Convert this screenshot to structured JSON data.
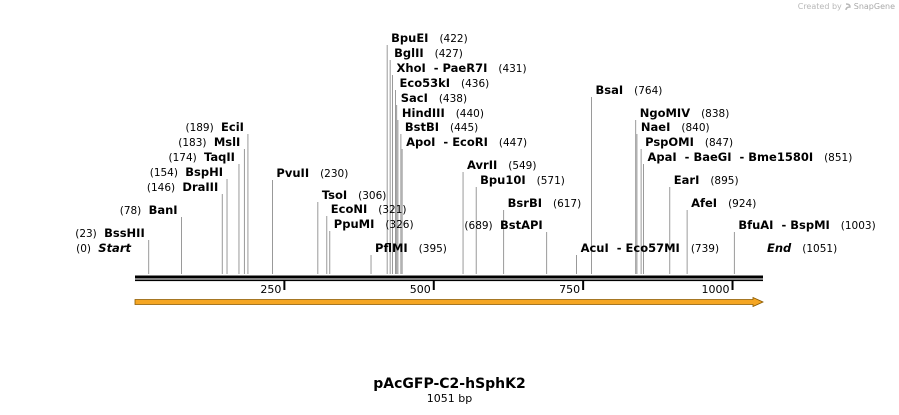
{
  "credit": {
    "prefix": "Created by",
    "brand": "SnapGene",
    "logo_icon": "snapgene-logo-icon"
  },
  "plasmid": {
    "name": "pAcGFP-C2-hSphK2",
    "size_label": "1051 bp",
    "length": 1051
  },
  "colors": {
    "axis": "#000000",
    "feature": "#f5a623",
    "feature_dark": "#8a5a00",
    "site_line": "#808080"
  },
  "ticks": [
    {
      "pos": 250,
      "label": "250"
    },
    {
      "pos": 500,
      "label": "500"
    },
    {
      "pos": 750,
      "label": "750"
    },
    {
      "pos": 1000,
      "label": "1000"
    }
  ],
  "feature": {
    "start": 0,
    "end": 1051,
    "direction": "forward"
  },
  "sites": [
    {
      "name": "Start",
      "pos": 0,
      "pos_label": "(0)",
      "style": "italic"
    },
    {
      "name": "BssHII",
      "pos": 23,
      "pos_label": "(23)"
    },
    {
      "name": "BanI",
      "pos": 78,
      "pos_label": "(78)"
    },
    {
      "name": "DraIII",
      "pos": 146,
      "pos_label": "(146)"
    },
    {
      "name": "BspHI",
      "pos": 154,
      "pos_label": "(154)"
    },
    {
      "name": "TaqII",
      "pos": 174,
      "pos_label": "(174)"
    },
    {
      "name": "MslI",
      "pos": 183,
      "pos_label": "(183)"
    },
    {
      "name": "EciI",
      "pos": 189,
      "pos_label": "(189)"
    },
    {
      "name": "PvuII",
      "pos": 230,
      "pos_label": "(230)"
    },
    {
      "name": "TsoI",
      "pos": 306,
      "pos_label": "(306)"
    },
    {
      "name": "EcoNI",
      "pos": 321,
      "pos_label": "(321)"
    },
    {
      "name": "PpuMI",
      "pos": 326,
      "pos_label": "(326)"
    },
    {
      "name": "PflMI",
      "pos": 395,
      "pos_label": "(395)"
    },
    {
      "name": "BpuEI",
      "pos": 422,
      "pos_label": "(422)"
    },
    {
      "name": "BglII",
      "pos": 427,
      "pos_label": "(427)"
    },
    {
      "name": "XhoI  - PaeR7I",
      "pos": 431,
      "pos_label": "(431)"
    },
    {
      "name": "Eco53kI",
      "pos": 436,
      "pos_label": "(436)"
    },
    {
      "name": "SacI",
      "pos": 438,
      "pos_label": "(438)"
    },
    {
      "name": "HindIII",
      "pos": 440,
      "pos_label": "(440)"
    },
    {
      "name": "BstBI",
      "pos": 445,
      "pos_label": "(445)"
    },
    {
      "name": "ApoI  - EcoRI",
      "pos": 447,
      "pos_label": "(447)"
    },
    {
      "name": "AvrII",
      "pos": 549,
      "pos_label": "(549)"
    },
    {
      "name": "Bpu10I",
      "pos": 571,
      "pos_label": "(571)"
    },
    {
      "name": "BsrBI",
      "pos": 617,
      "pos_label": "(617)"
    },
    {
      "name": "BstAPI",
      "pos": 689,
      "pos_label": "(689)"
    },
    {
      "name": "AcuI  - Eco57MI",
      "pos": 739,
      "pos_label": "(739)"
    },
    {
      "name": "BsaI",
      "pos": 764,
      "pos_label": "(764)"
    },
    {
      "name": "NgoMIV",
      "pos": 838,
      "pos_label": "(838)"
    },
    {
      "name": "NaeI",
      "pos": 840,
      "pos_label": "(840)"
    },
    {
      "name": "PspOMI",
      "pos": 847,
      "pos_label": "(847)"
    },
    {
      "name": "ApaI  - BaeGI  - Bme1580I",
      "pos": 851,
      "pos_label": "(851)"
    },
    {
      "name": "EarI",
      "pos": 895,
      "pos_label": "(895)"
    },
    {
      "name": "AfeI",
      "pos": 924,
      "pos_label": "(924)"
    },
    {
      "name": "BfuAI  - BspMI",
      "pos": 1003,
      "pos_label": "(1003)"
    },
    {
      "name": "End",
      "pos": 1051,
      "pos_label": "(1051)",
      "style": "italic"
    }
  ]
}
